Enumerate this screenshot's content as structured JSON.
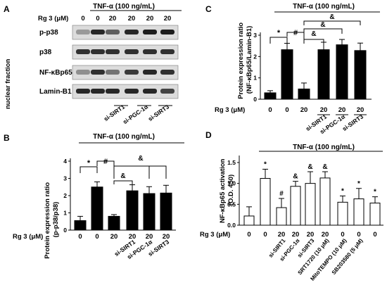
{
  "panels": {
    "A": {
      "letter": "A",
      "treatment": "TNF-α (100 ng/mL)",
      "rg3_label": "Rg 3 (μM)",
      "rg3_values": [
        "0",
        "0",
        "20",
        "20",
        "20",
        "20"
      ],
      "knockdown_labels": [
        "si-SIRT1",
        "si-PGC-1α",
        "si-SIRT3"
      ],
      "blot_labels": [
        "p-p38",
        "p38",
        "NF-κBp65",
        "Lamin-B1"
      ],
      "fraction_label": "nuclear fraction",
      "band_intensity": [
        [
          0.25,
          0.85,
          0.55,
          0.85,
          0.9,
          0.9
        ],
        [
          0.8,
          0.8,
          0.8,
          0.8,
          0.8,
          0.8
        ],
        [
          0.3,
          0.8,
          0.45,
          0.75,
          0.85,
          0.8
        ],
        [
          0.85,
          0.85,
          0.85,
          0.85,
          0.85,
          0.7
        ]
      ]
    },
    "B": {
      "letter": "B",
      "treatment": "TNF-α (100 ng/mL)",
      "rg3_label": "Rg 3 (μM)",
      "ylabel_line1": "Protein expression ratio",
      "ylabel_line2": "(p-p38/p38)",
      "yticks": [
        "0",
        "1",
        "2",
        "3",
        "4"
      ],
      "x_labels": [
        "0",
        "0",
        "20",
        "20",
        "20",
        "20"
      ],
      "sig_labels": [
        "*",
        "#",
        "&",
        "&"
      ],
      "knockdown_labels": [
        "si-SIRT1",
        "si-PGC-1α",
        "si-SIRT3"
      ]
    },
    "C": {
      "letter": "C",
      "treatment": "TNF-α (100 ng/mL)",
      "rg3_label": "Rg 3 (μM)",
      "ylabel_line1": "Protein expression ratio",
      "ylabel_line2": "(NF-κBp65/Lamin-B1)",
      "yticks": [
        "0",
        "1",
        "2",
        "3"
      ],
      "x_labels": [
        "0",
        "0",
        "20",
        "20",
        "20",
        "20"
      ],
      "sig_labels": [
        "*",
        "#",
        "&",
        "&",
        "&"
      ],
      "knockdown_labels": [
        "si-SIRT1",
        "si-PGC-1α",
        "si-SIRT3"
      ]
    },
    "D": {
      "letter": "D",
      "treatment": "TNF-α (100 ng/mL)",
      "rg3_label": "Rg 3 (μM)",
      "ylabel_line1": "NF-κBp65 activation",
      "ylabel_line2": "(O.D. 450)",
      "yticks": [
        "0.0",
        "0.5",
        "1.0",
        "1.5"
      ],
      "x_labels": [
        "0",
        "0",
        "20",
        "20",
        "20",
        "20",
        "0",
        "0",
        "0"
      ],
      "bar_marks": [
        "",
        "*",
        "#",
        "&",
        "&",
        "&",
        "*",
        "*",
        "*"
      ],
      "treatment_labels": [
        "si-SIRT1",
        "si-PGC-1α",
        "si-SIRT3",
        "SRT1720 (10 μM)",
        "MitoTEMPO (10 μM)",
        "SB203580 (5 μM)"
      ]
    }
  },
  "chart_data": [
    {
      "panel": "B",
      "type": "bar",
      "ylabel": "Protein expression ratio (p-p38/p38)",
      "ylim": [
        0,
        4
      ],
      "values": [
        0.55,
        2.5,
        0.8,
        2.28,
        2.12,
        2.15
      ],
      "errors": [
        0.25,
        0.3,
        0.1,
        0.35,
        0.4,
        0.45
      ],
      "fill": [
        "#000000",
        "#000000",
        "#000000",
        "#000000",
        "#000000",
        "#000000"
      ]
    },
    {
      "panel": "C",
      "type": "bar",
      "ylabel": "Protein expression ratio (NF-κBp65/Lamin-B1)",
      "ylim": [
        0,
        3
      ],
      "values": [
        0.3,
        2.32,
        0.48,
        2.32,
        2.55,
        2.28
      ],
      "errors": [
        0.1,
        0.3,
        0.28,
        0.35,
        0.25,
        0.35
      ],
      "fill": [
        "#000000",
        "#000000",
        "#000000",
        "#000000",
        "#000000",
        "#000000"
      ]
    },
    {
      "panel": "D",
      "type": "bar",
      "ylabel": "NF-κBp65 activation (O.D. 450)",
      "ylim": [
        0,
        1.6
      ],
      "values": [
        0.22,
        1.12,
        0.42,
        0.93,
        1.0,
        1.13,
        0.55,
        0.63,
        0.53
      ],
      "errors": [
        0.22,
        0.22,
        0.22,
        0.12,
        0.28,
        0.15,
        0.15,
        0.25,
        0.15
      ],
      "fill": [
        "#ffffff",
        "#ffffff",
        "#ffffff",
        "#ffffff",
        "#ffffff",
        "#ffffff",
        "#ffffff",
        "#ffffff",
        "#ffffff"
      ]
    }
  ]
}
